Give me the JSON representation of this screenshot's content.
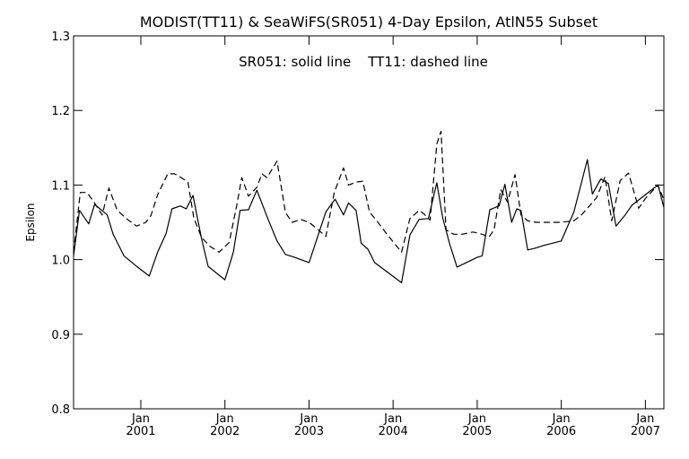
{
  "chart_data": {
    "type": "line",
    "title": "MODIST(TT11) & SeaWiFS(SR051) 4-Day Epsilon, AtlN55 Subset",
    "subtitle": "SR051: solid line    TT11: dashed line",
    "ylabel": "Epsilon",
    "xlabel": "",
    "xlim": [
      2000.2,
      2007.22
    ],
    "ylim": [
      0.8,
      1.3
    ],
    "grid": false,
    "y_ticks": [
      {
        "value": 0.8,
        "label": "0.8"
      },
      {
        "value": 0.9,
        "label": "0.9"
      },
      {
        "value": 1.0,
        "label": "1.0"
      },
      {
        "value": 1.1,
        "label": "1.1"
      },
      {
        "value": 1.2,
        "label": "1.2"
      },
      {
        "value": 1.3,
        "label": "1.3"
      }
    ],
    "x_ticks": [
      {
        "value": 2001.0,
        "month": "Jan",
        "year": "2001"
      },
      {
        "value": 2002.0,
        "month": "Jan",
        "year": "2002"
      },
      {
        "value": 2003.0,
        "month": "Jan",
        "year": "2003"
      },
      {
        "value": 2004.0,
        "month": "Jan",
        "year": "2004"
      },
      {
        "value": 2005.0,
        "month": "Jan",
        "year": "2005"
      },
      {
        "value": 2006.0,
        "month": "Jan",
        "year": "2006"
      },
      {
        "value": 2007.0,
        "month": "Jan",
        "year": "2007"
      }
    ],
    "series": [
      {
        "name": "SR051",
        "style": "solid",
        "color": "#000000",
        "x": [
          2000.2,
          2000.27,
          2000.38,
          2000.45,
          2000.6,
          2000.67,
          2000.8,
          2000.95,
          2001.1,
          2001.2,
          2001.3,
          2001.37,
          2001.47,
          2001.54,
          2001.62,
          2001.72,
          2001.8,
          2002.0,
          2002.1,
          2002.18,
          2002.28,
          2002.38,
          2002.52,
          2002.62,
          2002.72,
          2002.83,
          2003.0,
          2003.2,
          2003.31,
          2003.41,
          2003.47,
          2003.56,
          2003.62,
          2003.7,
          2003.78,
          2004.1,
          2004.2,
          2004.31,
          2004.42,
          2004.52,
          2004.59,
          2004.67,
          2004.76,
          2005.0,
          2005.06,
          2005.15,
          2005.26,
          2005.33,
          2005.41,
          2005.47,
          2005.52,
          2005.6,
          2005.68,
          2005.79,
          2006.0,
          2006.15,
          2006.31,
          2006.37,
          2006.47,
          2006.56,
          2006.65,
          2006.76,
          2006.84,
          2007.15,
          2007.22
        ],
        "y": [
          1.005,
          1.066,
          1.048,
          1.074,
          1.06,
          1.034,
          1.005,
          0.991,
          0.978,
          1.01,
          1.035,
          1.068,
          1.072,
          1.068,
          1.086,
          1.029,
          0.991,
          0.973,
          1.01,
          1.066,
          1.067,
          1.093,
          1.052,
          1.025,
          1.007,
          1.003,
          0.996,
          1.064,
          1.081,
          1.06,
          1.076,
          1.066,
          1.022,
          1.014,
          0.996,
          0.969,
          1.033,
          1.054,
          1.055,
          1.103,
          1.056,
          1.022,
          0.99,
          1.003,
          1.005,
          1.067,
          1.072,
          1.101,
          1.05,
          1.068,
          1.066,
          1.013,
          1.015,
          1.019,
          1.025,
          1.064,
          1.134,
          1.088,
          1.108,
          1.102,
          1.045,
          1.06,
          1.073,
          1.1,
          1.07
        ]
      },
      {
        "name": "TT11",
        "style": "dashed",
        "color": "#000000",
        "x": [
          2000.2,
          2000.28,
          2000.36,
          2000.45,
          2000.54,
          2000.62,
          2000.72,
          2000.84,
          2000.95,
          2001.06,
          2001.12,
          2001.2,
          2001.32,
          2001.4,
          2001.48,
          2001.56,
          2001.63,
          2001.72,
          2001.82,
          2001.93,
          2002.05,
          2002.14,
          2002.2,
          2002.28,
          2002.38,
          2002.44,
          2002.5,
          2002.62,
          2002.72,
          2002.8,
          2002.9,
          2003.0,
          2003.1,
          2003.2,
          2003.3,
          2003.41,
          2003.47,
          2003.56,
          2003.64,
          2003.72,
          2003.82,
          2003.92,
          2004.1,
          2004.2,
          2004.31,
          2004.36,
          2004.44,
          2004.52,
          2004.57,
          2004.63,
          2004.72,
          2004.82,
          2004.95,
          2005.06,
          2005.14,
          2005.2,
          2005.28,
          2005.36,
          2005.45,
          2005.52,
          2005.6,
          2005.7,
          2005.82,
          2005.96,
          2006.07,
          2006.15,
          2006.24,
          2006.32,
          2006.42,
          2006.52,
          2006.6,
          2006.7,
          2006.8,
          2006.92,
          2007.0,
          2007.15,
          2007.22
        ],
        "y": [
          1.01,
          1.09,
          1.09,
          1.076,
          1.06,
          1.096,
          1.066,
          1.054,
          1.045,
          1.05,
          1.059,
          1.087,
          1.115,
          1.115,
          1.11,
          1.104,
          1.056,
          1.03,
          1.018,
          1.01,
          1.023,
          1.072,
          1.11,
          1.085,
          1.097,
          1.115,
          1.11,
          1.132,
          1.063,
          1.05,
          1.054,
          1.05,
          1.041,
          1.031,
          1.09,
          1.123,
          1.1,
          1.104,
          1.105,
          1.064,
          1.05,
          1.035,
          1.01,
          1.055,
          1.066,
          1.062,
          1.053,
          1.155,
          1.172,
          1.04,
          1.034,
          1.034,
          1.037,
          1.034,
          1.03,
          1.04,
          1.094,
          1.077,
          1.114,
          1.06,
          1.052,
          1.05,
          1.05,
          1.05,
          1.051,
          1.052,
          1.06,
          1.07,
          1.083,
          1.111,
          1.052,
          1.106,
          1.116,
          1.069,
          1.082,
          1.1,
          1.08
        ]
      }
    ]
  }
}
